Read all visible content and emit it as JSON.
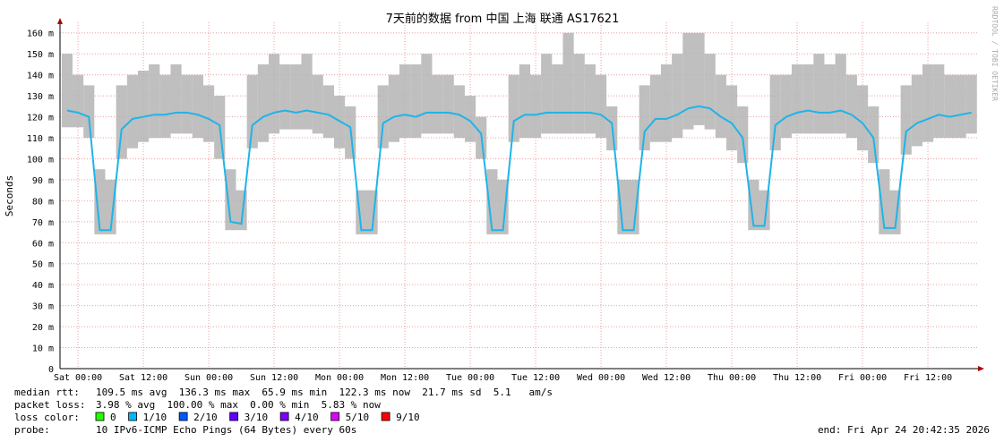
{
  "chart_data": {
    "type": "line",
    "title": "7天前的数据 from 中国 上海 联通 AS17621",
    "y_label": "Seconds",
    "watermark": "RRDTOOL / TOBI OETIKER",
    "grid": true,
    "xlim": [
      -3.3,
      165.2
    ],
    "ylim": [
      0,
      0.165
    ],
    "xticks": [
      {
        "value": 0,
        "label": "Sat 00:00"
      },
      {
        "value": 12,
        "label": "Sat 12:00"
      },
      {
        "value": 24,
        "label": "Sun 00:00"
      },
      {
        "value": 36,
        "label": "Sun 12:00"
      },
      {
        "value": 48,
        "label": "Mon 00:00"
      },
      {
        "value": 60,
        "label": "Mon 12:00"
      },
      {
        "value": 72,
        "label": "Tue 00:00"
      },
      {
        "value": 84,
        "label": "Tue 12:00"
      },
      {
        "value": 96,
        "label": "Wed 00:00"
      },
      {
        "value": 108,
        "label": "Wed 12:00"
      },
      {
        "value": 120,
        "label": "Thu 00:00"
      },
      {
        "value": 132,
        "label": "Thu 12:00"
      },
      {
        "value": 144,
        "label": "Fri 00:00"
      },
      {
        "value": 156,
        "label": "Fri 12:00"
      }
    ],
    "yticks": [
      0,
      {
        "value": 0.01,
        "label": "10 m"
      },
      {
        "value": 0.02,
        "label": "20 m"
      },
      {
        "value": 0.03,
        "label": "30 m"
      },
      {
        "value": 0.04,
        "label": "40 m"
      },
      {
        "value": 0.05,
        "label": "50 m"
      },
      {
        "value": 0.06,
        "label": "60 m"
      },
      {
        "value": 0.07,
        "label": "70 m"
      },
      {
        "value": 0.08,
        "label": "80 m"
      },
      {
        "value": 0.09,
        "label": "90 m"
      },
      {
        "value": 0.1,
        "label": "100 m"
      },
      {
        "value": 0.11,
        "label": "110 m"
      },
      {
        "value": 0.12,
        "label": "120 m"
      },
      {
        "value": 0.13,
        "label": "130 m"
      },
      {
        "value": 0.14,
        "label": "140 m"
      },
      {
        "value": 0.15,
        "label": "150 m"
      },
      {
        "value": 0.16,
        "label": "160 m"
      }
    ],
    "x": [
      -2,
      0,
      2,
      4,
      6,
      8,
      10,
      12,
      14,
      16,
      18,
      20,
      22,
      24,
      26,
      28,
      30,
      32,
      34,
      36,
      38,
      40,
      42,
      44,
      46,
      48,
      50,
      52,
      54,
      56,
      58,
      60,
      62,
      64,
      66,
      68,
      70,
      72,
      74,
      76,
      78,
      80,
      82,
      84,
      86,
      88,
      90,
      92,
      94,
      96,
      98,
      100,
      102,
      104,
      106,
      108,
      110,
      112,
      114,
      116,
      118,
      120,
      122,
      124,
      126,
      128,
      130,
      132,
      134,
      136,
      138,
      140,
      142,
      144,
      146,
      148,
      150,
      152,
      154,
      156,
      158,
      160,
      162,
      164
    ],
    "smoke": {
      "color": "#b4b4b4",
      "high": [
        0.15,
        0.14,
        0.135,
        0.095,
        0.09,
        0.135,
        0.14,
        0.142,
        0.145,
        0.14,
        0.145,
        0.14,
        0.14,
        0.135,
        0.13,
        0.095,
        0.085,
        0.14,
        0.145,
        0.15,
        0.145,
        0.145,
        0.15,
        0.14,
        0.135,
        0.13,
        0.125,
        0.085,
        0.085,
        0.135,
        0.14,
        0.145,
        0.145,
        0.15,
        0.14,
        0.14,
        0.135,
        0.13,
        0.12,
        0.095,
        0.09,
        0.14,
        0.145,
        0.14,
        0.15,
        0.145,
        0.16,
        0.15,
        0.145,
        0.14,
        0.125,
        0.09,
        0.09,
        0.135,
        0.14,
        0.145,
        0.15,
        0.16,
        0.16,
        0.15,
        0.14,
        0.135,
        0.125,
        0.09,
        0.085,
        0.14,
        0.14,
        0.145,
        0.145,
        0.15,
        0.145,
        0.15,
        0.14,
        0.135,
        0.125,
        0.095,
        0.085,
        0.135,
        0.14,
        0.145,
        0.145,
        0.14,
        0.14,
        0.14
      ],
      "low": [
        0.115,
        0.115,
        0.11,
        0.064,
        0.064,
        0.1,
        0.105,
        0.108,
        0.11,
        0.11,
        0.112,
        0.112,
        0.11,
        0.108,
        0.1,
        0.066,
        0.066,
        0.105,
        0.108,
        0.112,
        0.114,
        0.114,
        0.114,
        0.112,
        0.11,
        0.105,
        0.1,
        0.064,
        0.064,
        0.105,
        0.108,
        0.11,
        0.11,
        0.112,
        0.112,
        0.112,
        0.11,
        0.108,
        0.1,
        0.064,
        0.064,
        0.108,
        0.11,
        0.11,
        0.112,
        0.112,
        0.112,
        0.112,
        0.112,
        0.11,
        0.104,
        0.064,
        0.064,
        0.104,
        0.108,
        0.108,
        0.11,
        0.114,
        0.116,
        0.114,
        0.11,
        0.104,
        0.098,
        0.066,
        0.066,
        0.104,
        0.11,
        0.112,
        0.112,
        0.112,
        0.112,
        0.112,
        0.11,
        0.104,
        0.098,
        0.064,
        0.064,
        0.102,
        0.106,
        0.108,
        0.11,
        0.11,
        0.11,
        0.112
      ]
    },
    "series": [
      {
        "name": "median rtt:",
        "color": "#1fb4e8",
        "values": [
          0.123,
          0.122,
          0.12,
          0.066,
          0.066,
          0.114,
          0.119,
          0.12,
          0.121,
          0.121,
          0.122,
          0.122,
          0.121,
          0.119,
          0.116,
          0.07,
          0.069,
          0.116,
          0.12,
          0.122,
          0.123,
          0.122,
          0.123,
          0.122,
          0.121,
          0.118,
          0.115,
          0.066,
          0.066,
          0.117,
          0.12,
          0.121,
          0.12,
          0.122,
          0.122,
          0.122,
          0.121,
          0.118,
          0.112,
          0.066,
          0.066,
          0.118,
          0.121,
          0.121,
          0.122,
          0.122,
          0.122,
          0.122,
          0.122,
          0.121,
          0.117,
          0.066,
          0.066,
          0.113,
          0.119,
          0.119,
          0.121,
          0.124,
          0.125,
          0.124,
          0.12,
          0.117,
          0.11,
          0.068,
          0.068,
          0.116,
          0.12,
          0.122,
          0.123,
          0.122,
          0.122,
          0.123,
          0.121,
          0.117,
          0.11,
          0.067,
          0.067,
          0.113,
          0.117,
          0.119,
          0.121,
          0.12,
          0.121,
          0.122
        ]
      }
    ],
    "stats": "109.5 ms avg  136.3 ms max  65.9 ms min  122.3 ms now  21.7 ms sd  5.1   am/s",
    "packet_loss_label": "packet loss:",
    "packet_loss": "3.98 % avg  100.00 % max  0.00 % min  5.83 % now",
    "loss_color_label": "loss color:",
    "loss_colors": [
      {
        "label": "0",
        "color": "#26ff00"
      },
      {
        "label": "1/10",
        "color": "#00b8ff"
      },
      {
        "label": "2/10",
        "color": "#0059ff"
      },
      {
        "label": "3/10",
        "color": "#5e00ff"
      },
      {
        "label": "4/10",
        "color": "#7e00ff"
      },
      {
        "label": "5/10",
        "color": "#dd00ff"
      },
      {
        "label": "9/10",
        "color": "#ff0000"
      }
    ],
    "probe_label": "probe:",
    "probe": "10 IPv6-ICMP Echo Pings (64 Bytes) every 60s",
    "end": "end: Fri Apr 24 20:42:35 2026"
  }
}
